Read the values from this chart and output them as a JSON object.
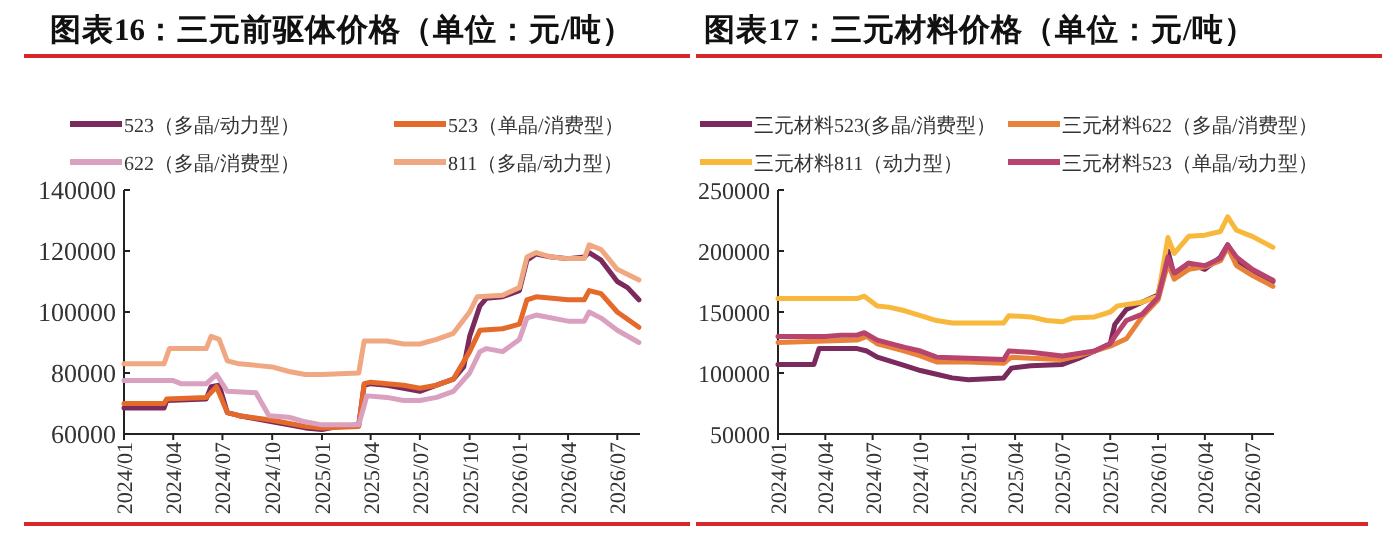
{
  "chart_data": [
    {
      "type": "line",
      "title": "图表16：三元前驱体价格（单位：元/吨）",
      "legend": "top",
      "grid": false,
      "marker": "none",
      "line_style": "solid",
      "xlim": [
        "2024-01-01",
        "2026-08-12"
      ],
      "xticks": [
        {
          "value": "2024-01-01",
          "label": "2024/01"
        },
        {
          "value": "2024-04-01",
          "label": "2024/04"
        },
        {
          "value": "2024-07-01",
          "label": "2024/07"
        },
        {
          "value": "2024-10-01",
          "label": "2024/10"
        },
        {
          "value": "2025-01-01",
          "label": "2025/01"
        },
        {
          "value": "2025-04-01",
          "label": "2025/04"
        },
        {
          "value": "2025-07-01",
          "label": "2025/07"
        },
        {
          "value": "2025-10-01",
          "label": "2025/10"
        },
        {
          "value": "2026-01-01",
          "label": "2026/01"
        },
        {
          "value": "2026-04-01",
          "label": "2026/04"
        },
        {
          "value": "2026-07-01",
          "label": "2026/07"
        }
      ],
      "ylim": [
        60000,
        140000
      ],
      "yticks": [
        60000,
        80000,
        100000,
        120000,
        140000
      ],
      "series": [
        {
          "name": "523（多晶/动力型）",
          "color": "#7b2a5e",
          "x": [
            "2024-01-01",
            "2024-03-15",
            "2024-03-20",
            "2024-06-01",
            "2024-06-10",
            "2024-06-25",
            "2024-07-10",
            "2024-08-01",
            "2024-09-01",
            "2024-10-01",
            "2024-11-01",
            "2024-12-01",
            "2025-01-01",
            "2025-02-01",
            "2025-03-10",
            "2025-03-20",
            "2025-04-01",
            "2025-05-01",
            "2025-06-01",
            "2025-07-01",
            "2025-08-01",
            "2025-09-01",
            "2025-09-20",
            "2025-10-01",
            "2025-10-20",
            "2025-11-01",
            "2025-12-01",
            "2026-01-01",
            "2026-01-15",
            "2026-02-01",
            "2026-03-01",
            "2026-04-01",
            "2026-05-01",
            "2026-05-10",
            "2026-06-01",
            "2026-07-01",
            "2026-07-20",
            "2026-08-10"
          ],
          "values": [
            68500,
            68500,
            71000,
            71500,
            75500,
            76000,
            67000,
            66000,
            65000,
            64000,
            63000,
            62000,
            61500,
            62500,
            63000,
            76000,
            76500,
            76000,
            75000,
            74000,
            76000,
            78000,
            82000,
            92000,
            102000,
            104500,
            105000,
            107000,
            117000,
            119000,
            118000,
            117500,
            118000,
            119500,
            117000,
            110000,
            108000,
            104000
          ]
        },
        {
          "name": "523（单晶/消费型）",
          "color": "#e4692a",
          "x": [
            "2024-01-01",
            "2024-03-15",
            "2024-03-20",
            "2024-06-01",
            "2024-06-20",
            "2024-07-10",
            "2024-08-01",
            "2024-10-01",
            "2024-12-01",
            "2025-01-01",
            "2025-03-10",
            "2025-03-20",
            "2025-04-01",
            "2025-06-01",
            "2025-07-01",
            "2025-08-01",
            "2025-09-01",
            "2025-10-01",
            "2025-10-20",
            "2025-12-01",
            "2026-01-01",
            "2026-01-15",
            "2026-02-01",
            "2026-04-01",
            "2026-05-01",
            "2026-05-10",
            "2026-06-01",
            "2026-07-01",
            "2026-08-10"
          ],
          "values": [
            70000,
            70000,
            71500,
            72000,
            75500,
            67000,
            66000,
            64500,
            62500,
            62000,
            62500,
            76500,
            77000,
            76000,
            75000,
            76000,
            78000,
            87000,
            94000,
            94500,
            96000,
            104000,
            105000,
            104000,
            104000,
            107000,
            106000,
            100000,
            95000
          ]
        },
        {
          "name": "622（多晶/消费型）",
          "color": "#d9a0c0",
          "x": [
            "2024-01-01",
            "2024-04-01",
            "2024-04-15",
            "2024-06-01",
            "2024-06-20",
            "2024-07-10",
            "2024-09-01",
            "2024-09-25",
            "2024-11-01",
            "2024-12-01",
            "2025-01-01",
            "2025-03-10",
            "2025-03-25",
            "2025-05-01",
            "2025-06-01",
            "2025-07-01",
            "2025-08-01",
            "2025-09-01",
            "2025-10-01",
            "2025-10-20",
            "2025-11-01",
            "2025-12-01",
            "2026-01-01",
            "2026-01-15",
            "2026-02-01",
            "2026-04-01",
            "2026-05-01",
            "2026-05-10",
            "2026-06-01",
            "2026-07-01",
            "2026-08-10"
          ],
          "values": [
            77500,
            77500,
            76500,
            76500,
            79500,
            74000,
            73500,
            66000,
            65500,
            64000,
            63000,
            63000,
            72500,
            72000,
            71000,
            71000,
            72000,
            74000,
            80000,
            87000,
            88000,
            87000,
            91000,
            98000,
            99000,
            97000,
            97000,
            100000,
            98000,
            94000,
            90000
          ]
        },
        {
          "name": "811（多晶/动力型）",
          "color": "#f0a882",
          "x": [
            "2024-01-01",
            "2024-03-15",
            "2024-03-25",
            "2024-06-01",
            "2024-06-10",
            "2024-06-25",
            "2024-07-10",
            "2024-08-01",
            "2024-09-01",
            "2024-10-01",
            "2024-11-01",
            "2024-12-01",
            "2025-01-01",
            "2025-03-10",
            "2025-03-20",
            "2025-05-01",
            "2025-06-01",
            "2025-07-01",
            "2025-08-01",
            "2025-09-01",
            "2025-10-01",
            "2025-10-15",
            "2025-12-01",
            "2026-01-01",
            "2026-01-15",
            "2026-02-01",
            "2026-03-01",
            "2026-04-01",
            "2026-05-01",
            "2026-05-10",
            "2026-06-01",
            "2026-07-01",
            "2026-08-10"
          ],
          "values": [
            83000,
            83000,
            88000,
            88000,
            92000,
            91000,
            84000,
            83000,
            82500,
            82000,
            80500,
            79500,
            79500,
            80000,
            90500,
            90500,
            89500,
            89500,
            91000,
            93000,
            100000,
            105000,
            105500,
            108000,
            118000,
            119500,
            118000,
            117500,
            117500,
            122000,
            120500,
            114000,
            110500
          ]
        }
      ]
    },
    {
      "type": "line",
      "title": "图表17：三元材料价格（单位：元/吨）",
      "legend": "top",
      "grid": false,
      "marker": "none",
      "line_style": "solid",
      "xlim": [
        "2024-01-01",
        "2026-08-12"
      ],
      "xticks": [
        {
          "value": "2024-01-01",
          "label": "2024/01"
        },
        {
          "value": "2024-04-01",
          "label": "2024/04"
        },
        {
          "value": "2024-07-01",
          "label": "2024/07"
        },
        {
          "value": "2024-10-01",
          "label": "2024/10"
        },
        {
          "value": "2025-01-01",
          "label": "2025/01"
        },
        {
          "value": "2025-04-01",
          "label": "2025/04"
        },
        {
          "value": "2025-07-01",
          "label": "2025/07"
        },
        {
          "value": "2025-10-01",
          "label": "2025/10"
        },
        {
          "value": "2026-01-01",
          "label": "2026/01"
        },
        {
          "value": "2026-04-01",
          "label": "2026/04"
        },
        {
          "value": "2026-07-01",
          "label": "2026/07"
        }
      ],
      "ylim": [
        50000,
        250000
      ],
      "yticks": [
        50000,
        100000,
        150000,
        200000,
        250000
      ],
      "series": [
        {
          "name": "三元材料523(多晶/消费型）",
          "color": "#7b2a5e",
          "x": [
            "2024-01-01",
            "2024-03-10",
            "2024-03-20",
            "2024-06-01",
            "2024-06-20",
            "2024-07-10",
            "2024-09-01",
            "2024-10-01",
            "2024-11-01",
            "2024-12-01",
            "2025-01-01",
            "2025-03-10",
            "2025-03-25",
            "2025-05-01",
            "2025-07-01",
            "2025-08-01",
            "2025-09-01",
            "2025-10-01",
            "2025-10-10",
            "2025-11-01",
            "2025-12-01",
            "2026-01-01",
            "2026-01-20",
            "2026-02-01",
            "2026-03-01",
            "2026-04-01",
            "2026-05-01",
            "2026-05-15",
            "2026-06-01",
            "2026-07-01",
            "2026-08-10"
          ],
          "values": [
            107000,
            107000,
            120000,
            120000,
            118000,
            113000,
            106000,
            102000,
            99000,
            96000,
            94500,
            96000,
            104000,
            106000,
            107000,
            112000,
            118000,
            124000,
            140000,
            152000,
            158000,
            164000,
            200000,
            180000,
            190000,
            185000,
            195000,
            205000,
            192000,
            183000,
            175000
          ]
        },
        {
          "name": "三元材料622（多晶/消费型）",
          "color": "#e8823a",
          "x": [
            "2024-01-01",
            "2024-06-01",
            "2024-06-20",
            "2024-07-10",
            "2024-09-01",
            "2024-10-01",
            "2024-11-01",
            "2025-01-01",
            "2025-03-10",
            "2025-03-25",
            "2025-05-01",
            "2025-07-01",
            "2025-08-01",
            "2025-09-01",
            "2025-10-01",
            "2025-11-01",
            "2025-12-01",
            "2026-01-01",
            "2026-01-20",
            "2026-02-01",
            "2026-03-01",
            "2026-04-01",
            "2026-05-01",
            "2026-05-15",
            "2026-06-01",
            "2026-07-01",
            "2026-08-10"
          ],
          "values": [
            125000,
            127000,
            130000,
            124000,
            118000,
            114000,
            109000,
            109000,
            108000,
            113000,
            112000,
            111000,
            114000,
            118000,
            122000,
            128000,
            146000,
            160000,
            190000,
            177000,
            185000,
            187000,
            192000,
            203000,
            188000,
            180000,
            171000
          ]
        },
        {
          "name": "三元材料811（动力型）",
          "color": "#f8b83c",
          "x": [
            "2024-01-01",
            "2024-06-01",
            "2024-06-15",
            "2024-07-10",
            "2024-08-01",
            "2024-09-01",
            "2024-10-01",
            "2024-11-01",
            "2024-12-01",
            "2025-03-10",
            "2025-03-20",
            "2025-05-01",
            "2025-06-01",
            "2025-07-01",
            "2025-07-20",
            "2025-09-01",
            "2025-10-01",
            "2025-10-15",
            "2025-12-01",
            "2026-01-01",
            "2026-01-20",
            "2026-02-01",
            "2026-03-01",
            "2026-04-01",
            "2026-05-01",
            "2026-05-15",
            "2026-06-01",
            "2026-07-01",
            "2026-08-10"
          ],
          "values": [
            161000,
            161000,
            163000,
            155000,
            154000,
            151000,
            147000,
            143000,
            141000,
            141000,
            147000,
            146000,
            143000,
            142000,
            145000,
            146000,
            150000,
            155000,
            158000,
            163000,
            211000,
            198000,
            212000,
            213000,
            216000,
            228000,
            217000,
            212000,
            203000
          ]
        },
        {
          "name": "三元材料523（单晶/动力型）",
          "color": "#b8436e",
          "x": [
            "2024-01-01",
            "2024-04-01",
            "2024-05-01",
            "2024-06-01",
            "2024-06-15",
            "2024-07-10",
            "2024-09-01",
            "2024-10-01",
            "2024-11-01",
            "2025-01-01",
            "2025-03-10",
            "2025-03-20",
            "2025-05-01",
            "2025-07-01",
            "2025-08-01",
            "2025-09-01",
            "2025-10-01",
            "2025-10-10",
            "2025-11-01",
            "2025-12-01",
            "2026-01-01",
            "2026-01-20",
            "2026-02-01",
            "2026-03-01",
            "2026-04-01",
            "2026-05-01",
            "2026-05-15",
            "2026-06-01",
            "2026-07-01",
            "2026-08-10"
          ],
          "values": [
            130000,
            130000,
            131000,
            131000,
            133000,
            127000,
            121000,
            118000,
            113000,
            112000,
            111000,
            118000,
            117000,
            114000,
            116000,
            118000,
            124000,
            130000,
            143000,
            148000,
            162000,
            195000,
            182000,
            190000,
            188000,
            194000,
            205000,
            195000,
            185000,
            176000
          ]
        }
      ]
    }
  ]
}
